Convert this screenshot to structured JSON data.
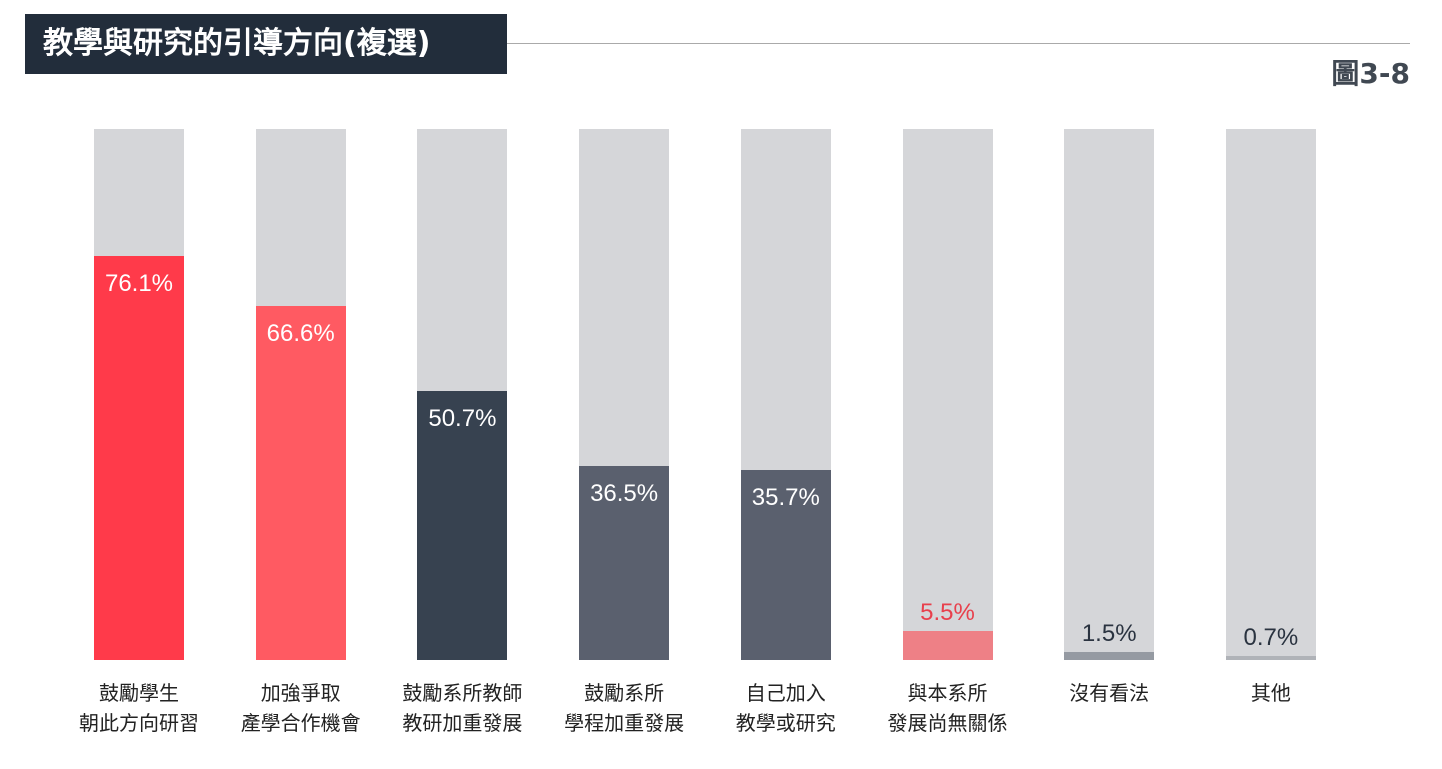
{
  "header": {
    "title": "教學與研究的引導方向(複選)",
    "figure_label": "圖3-8"
  },
  "chart_data": {
    "type": "bar",
    "title": "教學與研究的引導方向(複選)",
    "ylim": [
      0,
      100
    ],
    "categories": [
      [
        "鼓勵學生",
        "朝此方向研習"
      ],
      [
        "加強爭取",
        "產學合作機會"
      ],
      [
        "鼓勵系所教師",
        "教研加重發展"
      ],
      [
        "鼓勵系所",
        "學程加重發展"
      ],
      [
        "自己加入",
        "教學或研究"
      ],
      [
        "與本系所",
        "發展尚無關係"
      ],
      [
        "沒有看法"
      ],
      [
        "其他"
      ]
    ],
    "values": [
      76.1,
      66.6,
      50.7,
      36.5,
      35.7,
      5.5,
      1.5,
      0.7
    ],
    "value_labels": [
      "76.1%",
      "66.6%",
      "50.7%",
      "36.5%",
      "35.7%",
      "5.5%",
      "1.5%",
      "0.7%"
    ],
    "colors": [
      "#ff3a4a",
      "#ff5a62",
      "#374250",
      "#5a606e",
      "#5a606e",
      "#ee8086",
      "#959aa2",
      "#b0b3b8"
    ],
    "label_colors": [
      "#ffffff",
      "#ffffff",
      "#ffffff",
      "#ffffff",
      "#ffffff",
      "#e8404c",
      "#2a3340",
      "#2a3340"
    ],
    "track_color": "#d5d6d9"
  }
}
